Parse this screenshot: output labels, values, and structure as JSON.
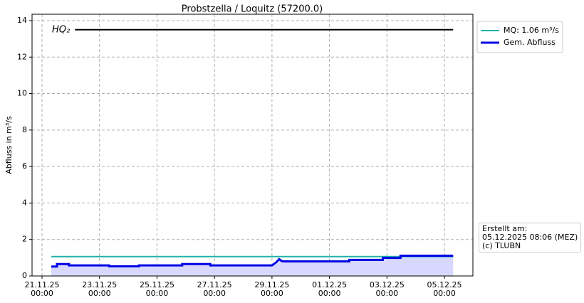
{
  "chart_data": {
    "type": "line",
    "title": "Probstzella / Loquitz (57200.0)",
    "y_label": "Abfluss in m³/s",
    "xlim": [
      "20.11.25 15:40",
      "05.12.25 23:45"
    ],
    "xticks": [
      "21.11.25\n00:00",
      "23.11.25\n00:00",
      "25.11.25\n00:00",
      "27.11.25\n00:00",
      "29.11.25\n00:00",
      "01.12.25\n00:00",
      "03.12.25\n00:00",
      "05.12.25\n00:00"
    ],
    "ylim": [
      0,
      14.35
    ],
    "yticks": [
      0,
      2,
      4,
      6,
      8,
      10,
      12,
      14
    ],
    "grid": true,
    "legend": "outside upper right",
    "series": [
      {
        "name": "MQ: 1.06 m³/s",
        "color": "#20b2aa",
        "width": 2,
        "x": [
          "21.11.25 07:45",
          "05.12.25 07:15"
        ],
        "values": [
          1.06,
          1.06
        ]
      },
      {
        "name": "Gem. Abfluss",
        "color": "#0000e6",
        "width": 3,
        "fill": "#d8d8ff",
        "x": [
          "21.11.25 07:45",
          "21.11.25 12:30",
          "21.11.25 12:30",
          "21.11.25 22:30",
          "21.11.25 22:30",
          "23.11.25 08:00",
          "23.11.25 08:00",
          "24.11.25 09:00",
          "24.11.25 09:00",
          "25.11.25 21:00",
          "25.11.25 21:00",
          "26.11.25 20:30",
          "26.11.25 20:30",
          "29.11.25 00:00",
          "29.11.25 03:30",
          "29.11.25 06:00",
          "29.11.25 08:00",
          "29.11.25 09:30",
          "01.12.25 16:30",
          "01.12.25 16:30",
          "02.12.25 20:30",
          "02.12.25 20:30",
          "03.12.25 11:15",
          "03.12.25 11:15",
          "05.12.25 07:15"
        ],
        "values": [
          0.52,
          0.52,
          0.65,
          0.65,
          0.58,
          0.58,
          0.53,
          0.53,
          0.58,
          0.58,
          0.65,
          0.65,
          0.58,
          0.58,
          0.75,
          0.92,
          0.82,
          0.8,
          0.8,
          0.88,
          0.88,
          0.99,
          0.99,
          1.11,
          1.11
        ]
      }
    ],
    "reference_line": {
      "label": "HQ₂",
      "color": "#000000",
      "x": [
        "22.11.25 03:30",
        "05.12.25 07:15"
      ],
      "values": [
        13.5,
        13.5
      ]
    },
    "note": "Erstellt am:\n05.12.2025 08:06 (MEZ)\n(c) TLUBN"
  }
}
